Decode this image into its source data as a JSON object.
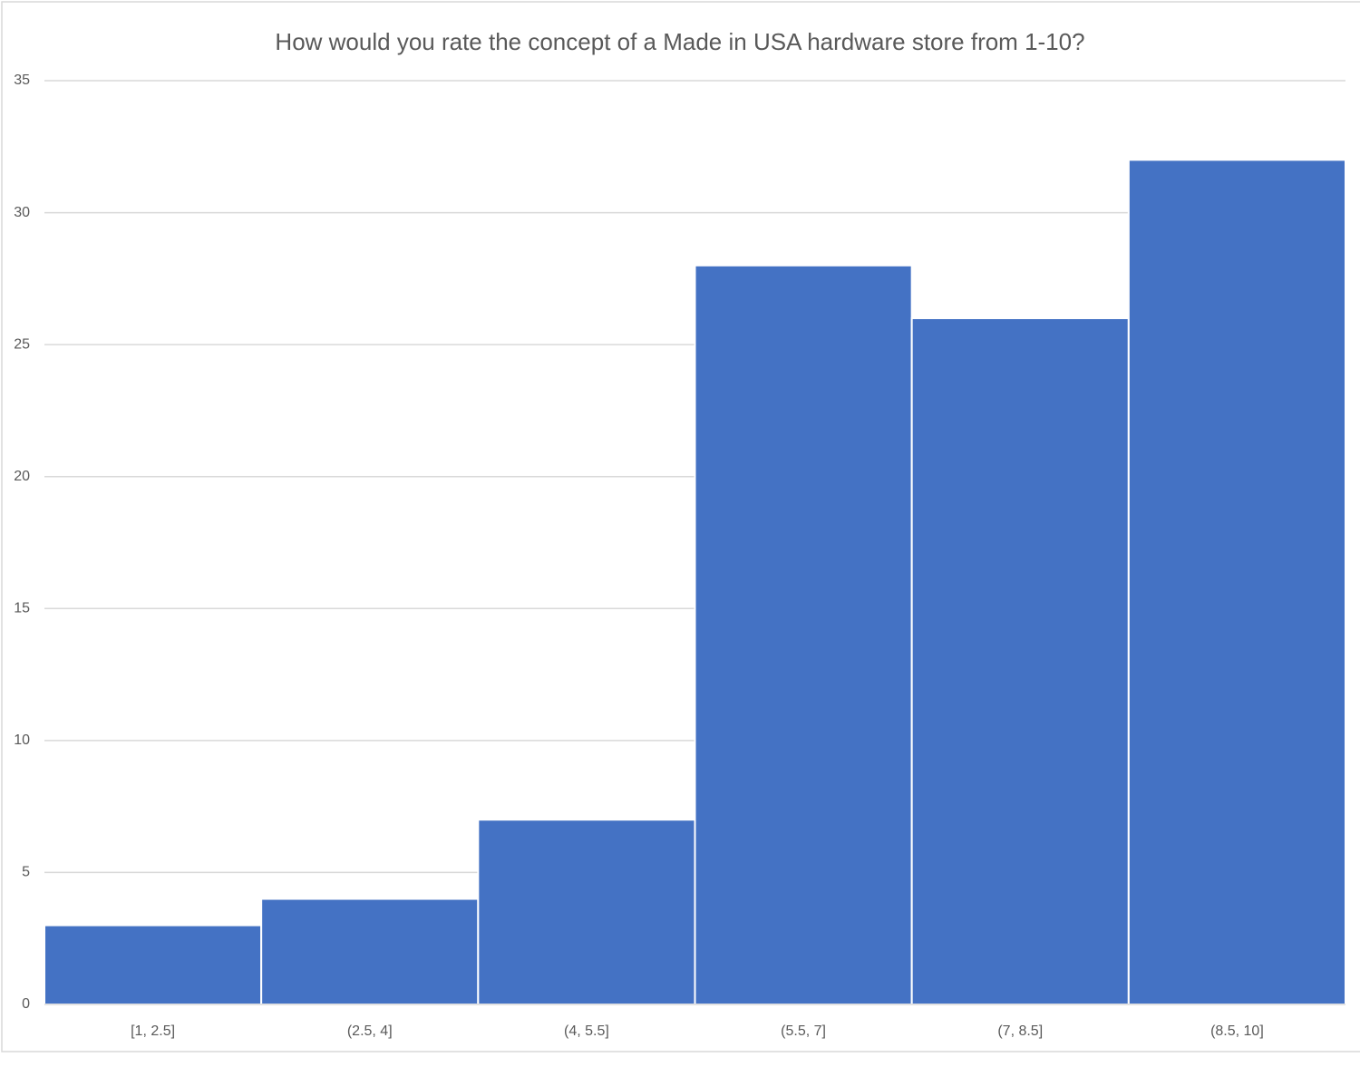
{
  "chart_data": {
    "type": "bar",
    "title": "How would you rate the concept of a Made in USA hardware store from 1-10?",
    "categories": [
      "[1, 2.5]",
      "(2.5, 4]",
      "(4, 5.5]",
      "(5.5, 7]",
      "(7, 8.5]",
      "(8.5, 10]"
    ],
    "values": [
      3,
      4,
      7,
      28,
      26,
      32
    ],
    "color": "#4472c4",
    "ylim": [
      0,
      35
    ],
    "yticks": [
      0,
      5,
      10,
      15,
      20,
      25,
      30,
      35
    ],
    "grid": true
  }
}
